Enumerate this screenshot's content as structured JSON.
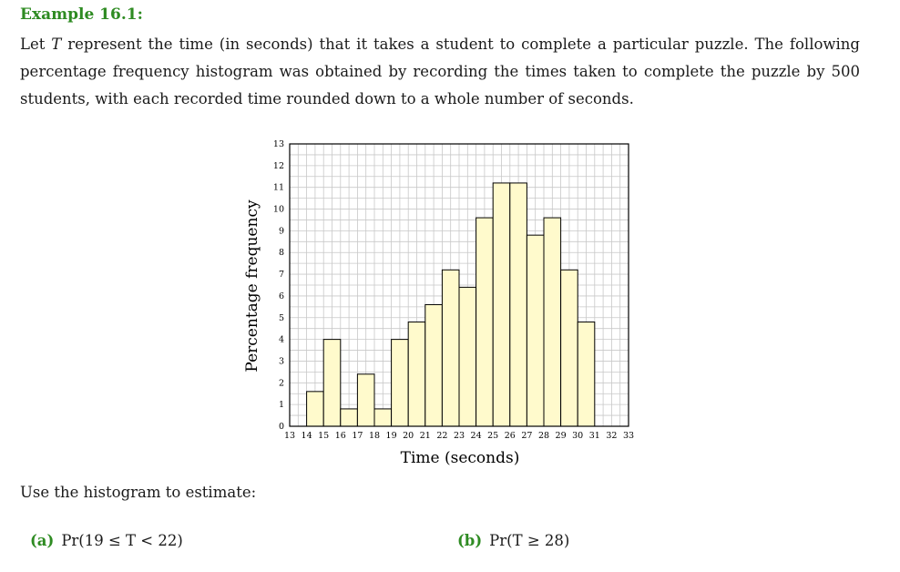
{
  "heading": "Example 16.1:",
  "intro": {
    "before_var": "Let ",
    "var": "T",
    "after_var": " represent the time (in seconds) that it takes a student to complete a particular puzzle. The following percentage frequency histogram was obtained by recording the times taken to complete the puzzle by 500 students, with each recorded time rounded down to a whole number of seconds."
  },
  "prompt": "Use the histogram to estimate:",
  "parts": [
    {
      "label": "(a)",
      "expr": "Pr(19 ≤ T < 22)"
    },
    {
      "label": "(b)",
      "expr": "Pr(T ≥ 28)"
    }
  ],
  "chart_data": {
    "type": "bar",
    "xlabel": "Time (seconds)",
    "ylabel": "Percentage frequency",
    "xlim": [
      13,
      33
    ],
    "ylim": [
      0,
      13
    ],
    "x_ticks": [
      13,
      14,
      15,
      16,
      17,
      18,
      19,
      20,
      21,
      22,
      23,
      24,
      25,
      26,
      27,
      28,
      29,
      30,
      31,
      32,
      33
    ],
    "y_ticks": [
      0,
      1,
      2,
      3,
      4,
      5,
      6,
      7,
      8,
      9,
      10,
      11,
      12,
      13
    ],
    "grid_step": 0.5,
    "bins": [
      {
        "start": 14,
        "end": 15,
        "value": 1.6
      },
      {
        "start": 15,
        "end": 16,
        "value": 4.0
      },
      {
        "start": 16,
        "end": 17,
        "value": 0.8
      },
      {
        "start": 17,
        "end": 18,
        "value": 2.4
      },
      {
        "start": 18,
        "end": 19,
        "value": 0.8
      },
      {
        "start": 19,
        "end": 20,
        "value": 4.0
      },
      {
        "start": 20,
        "end": 21,
        "value": 4.8
      },
      {
        "start": 21,
        "end": 22,
        "value": 5.6
      },
      {
        "start": 22,
        "end": 23,
        "value": 7.2
      },
      {
        "start": 23,
        "end": 24,
        "value": 6.4
      },
      {
        "start": 24,
        "end": 25,
        "value": 9.6
      },
      {
        "start": 25,
        "end": 26,
        "value": 11.2
      },
      {
        "start": 26,
        "end": 27,
        "value": 11.2
      },
      {
        "start": 27,
        "end": 28,
        "value": 8.8
      },
      {
        "start": 28,
        "end": 29,
        "value": 9.6
      },
      {
        "start": 29,
        "end": 30,
        "value": 7.2
      },
      {
        "start": 30,
        "end": 31,
        "value": 4.8
      }
    ],
    "bar_color": "#fffacc",
    "grid": true
  }
}
